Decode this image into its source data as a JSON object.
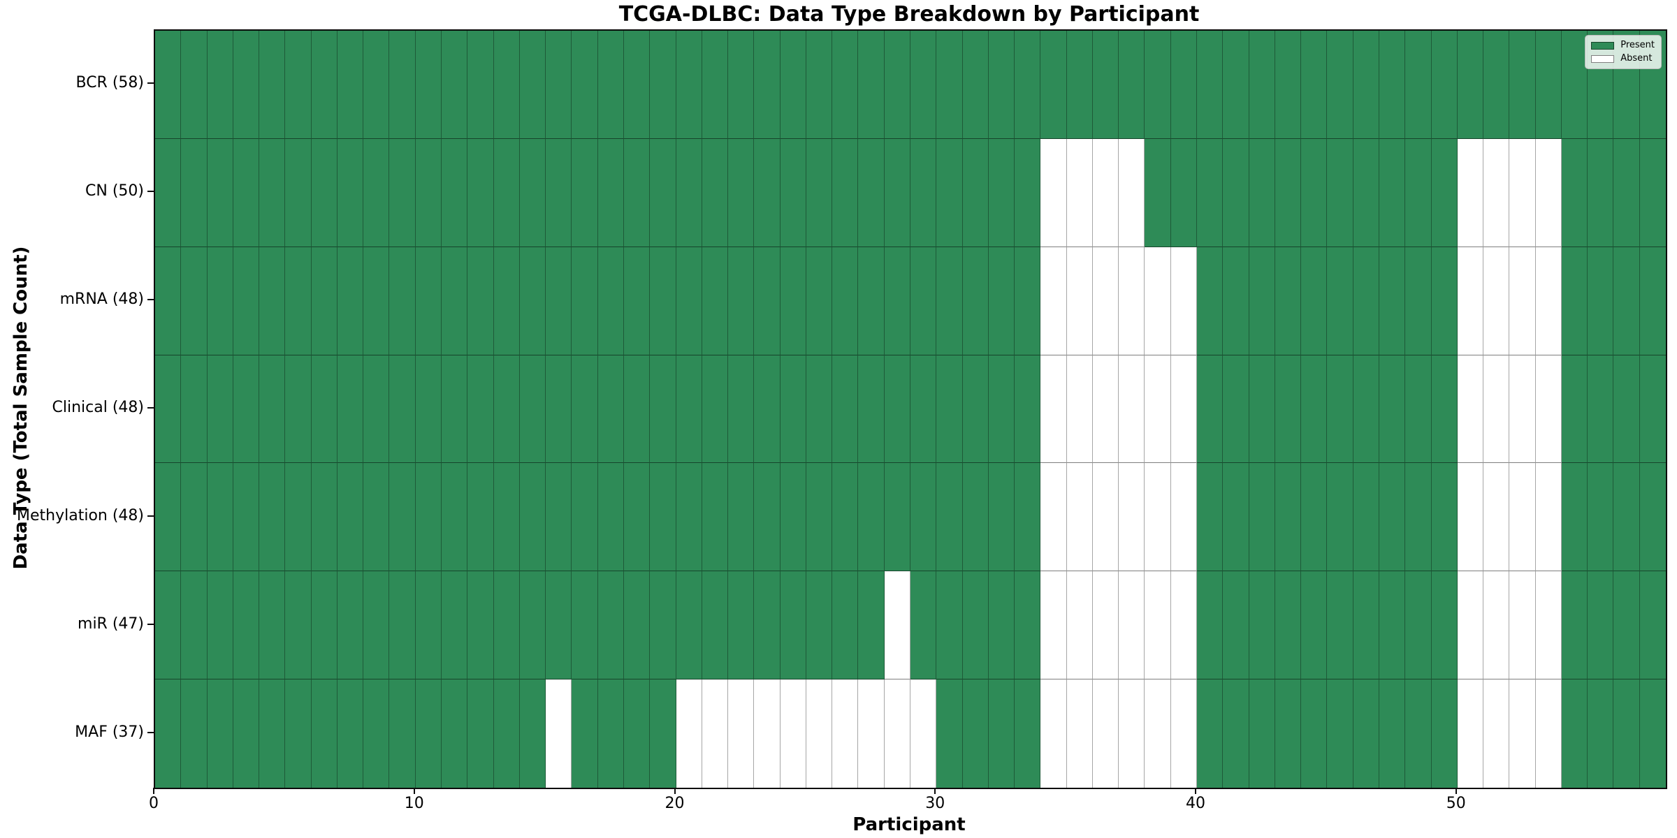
{
  "figure": {
    "title": "TCGA-DLBC: Data Type Breakdown by Participant",
    "xlabel": "Participant",
    "ylabel": "Data Type (Total Sample Count)"
  },
  "legend": {
    "items": [
      {
        "label": "Present",
        "color": "#2e8b57"
      },
      {
        "label": "Absent",
        "color": "#ffffff"
      }
    ]
  },
  "chart_data": {
    "type": "heatmap",
    "title": "TCGA-DLBC: Data Type Breakdown by Participant",
    "xlabel": "Participant",
    "ylabel": "Data Type (Total Sample Count)",
    "n_participants": 58,
    "x_range": [
      0,
      58
    ],
    "x_ticks": [
      0,
      10,
      20,
      30,
      40,
      50
    ],
    "legend_position": "upper right",
    "grid": "cell-borders",
    "colors": {
      "present": "#2e8b57",
      "absent": "#ffffff"
    },
    "rows": [
      {
        "label": "BCR (58)",
        "data_type": "BCR",
        "present_count": 58,
        "absent_participants": []
      },
      {
        "label": "CN (50)",
        "data_type": "CN",
        "present_count": 50,
        "absent_participants": [
          34,
          35,
          36,
          37,
          50,
          51,
          52,
          53
        ]
      },
      {
        "label": "mRNA (48)",
        "data_type": "mRNA",
        "present_count": 48,
        "absent_participants": [
          34,
          35,
          36,
          37,
          38,
          39,
          50,
          51,
          52,
          53
        ]
      },
      {
        "label": "Clinical (48)",
        "data_type": "Clinical",
        "present_count": 48,
        "absent_participants": [
          34,
          35,
          36,
          37,
          38,
          39,
          50,
          51,
          52,
          53
        ]
      },
      {
        "label": "Methylation (48)",
        "data_type": "Methylation",
        "present_count": 48,
        "absent_participants": [
          34,
          35,
          36,
          37,
          38,
          39,
          50,
          51,
          52,
          53
        ]
      },
      {
        "label": "miR (47)",
        "data_type": "miR",
        "present_count": 47,
        "absent_participants": [
          28,
          34,
          35,
          36,
          37,
          38,
          39,
          50,
          51,
          52,
          53
        ]
      },
      {
        "label": "MAF (37)",
        "data_type": "MAF",
        "present_count": 37,
        "absent_participants": [
          15,
          20,
          21,
          22,
          23,
          24,
          25,
          26,
          27,
          28,
          29,
          34,
          35,
          36,
          37,
          38,
          39,
          50,
          51,
          52,
          53
        ]
      }
    ]
  }
}
